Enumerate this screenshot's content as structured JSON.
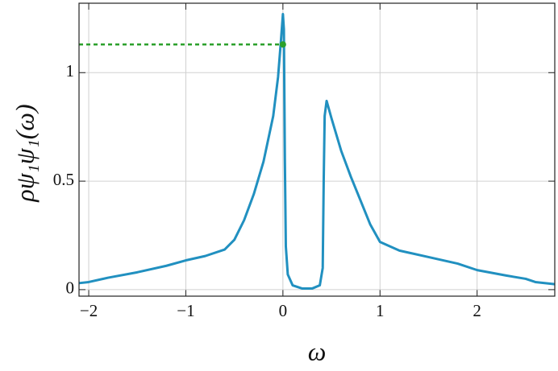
{
  "chart_data": {
    "type": "line",
    "xlabel": "ω",
    "ylabel": "ρψ₁ψ₁(ω)",
    "x": [
      -2.1,
      -2.0,
      -1.8,
      -1.5,
      -1.2,
      -1.0,
      -0.8,
      -0.6,
      -0.5,
      -0.4,
      -0.3,
      -0.2,
      -0.1,
      -0.05,
      -0.02,
      0,
      0.01,
      0.02,
      0.03,
      0.05,
      0.1,
      0.2,
      0.3,
      0.38,
      0.41,
      0.42,
      0.43,
      0.45,
      0.5,
      0.6,
      0.7,
      0.8,
      0.9,
      1.0,
      1.2,
      1.5,
      1.8,
      2.0,
      2.3,
      2.5,
      2.6,
      2.8
    ],
    "series": [
      {
        "color": "#2190c0",
        "values": [
          0.03,
          0.035,
          0.055,
          0.08,
          0.11,
          0.135,
          0.155,
          0.185,
          0.23,
          0.32,
          0.44,
          0.59,
          0.8,
          0.98,
          1.15,
          1.27,
          1.2,
          0.6,
          0.2,
          0.07,
          0.02,
          0.005,
          0.005,
          0.02,
          0.1,
          0.5,
          0.8,
          0.87,
          0.79,
          0.64,
          0.52,
          0.41,
          0.3,
          0.22,
          0.18,
          0.15,
          0.12,
          0.09,
          0.065,
          0.05,
          0.035,
          0.025
        ]
      }
    ],
    "marker": {
      "x": 0,
      "y": 1.13,
      "color": "#2ca02c"
    },
    "xlim": [
      -2.1,
      2.8
    ],
    "ylim": [
      -0.03,
      1.32
    ],
    "xticks": [
      {
        "value": -2,
        "label": "−2"
      },
      {
        "value": -1,
        "label": "−1"
      },
      0,
      1,
      2
    ],
    "yticks": [
      0,
      0.5,
      1
    ],
    "grid": true
  }
}
